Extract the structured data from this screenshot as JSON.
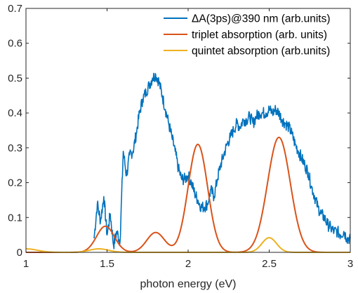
{
  "chart_data": {
    "type": "line",
    "title": "",
    "xlabel": "photon energy (eV)",
    "ylabel": "",
    "xlim": [
      1,
      3
    ],
    "ylim": [
      0,
      0.7
    ],
    "x_ticks": [
      1,
      1.5,
      2,
      2.5,
      3
    ],
    "x_tick_labels": [
      "1",
      "1.5",
      "2",
      "2.5",
      "3"
    ],
    "y_ticks": [
      0,
      0.1,
      0.2,
      0.3,
      0.4,
      0.5,
      0.6,
      0.7
    ],
    "y_tick_labels": [
      "0",
      "0.1",
      "0.2",
      "0.3",
      "0.4",
      "0.5",
      "0.6",
      "0.7"
    ],
    "grid": false,
    "legend_position": "top-right",
    "series": [
      {
        "name": "ΔA(3ps)@390 nm (arb.units)",
        "color": "#0072BD",
        "x": [
          1.42,
          1.44,
          1.46,
          1.48,
          1.5,
          1.52,
          1.54,
          1.56,
          1.58,
          1.6,
          1.62,
          1.64,
          1.66,
          1.68,
          1.7,
          1.72,
          1.74,
          1.76,
          1.78,
          1.8,
          1.82,
          1.84,
          1.86,
          1.88,
          1.9,
          1.92,
          1.94,
          1.96,
          1.98,
          2.0,
          2.02,
          2.04,
          2.06,
          2.08,
          2.1,
          2.12,
          2.14,
          2.16,
          2.18,
          2.2,
          2.22,
          2.24,
          2.26,
          2.28,
          2.3,
          2.32,
          2.34,
          2.36,
          2.38,
          2.4,
          2.42,
          2.44,
          2.46,
          2.48,
          2.5,
          2.52,
          2.54,
          2.56,
          2.58,
          2.6,
          2.62,
          2.64,
          2.66,
          2.68,
          2.7,
          2.72,
          2.74,
          2.76,
          2.78,
          2.8,
          2.82,
          2.84,
          2.86,
          2.88,
          2.9,
          2.92,
          2.94,
          2.96,
          2.98,
          3.0
        ],
        "values": [
          0.04,
          0.14,
          0.09,
          0.16,
          0.05,
          0.11,
          0.02,
          0.06,
          0.03,
          0.29,
          0.22,
          0.28,
          0.29,
          0.34,
          0.4,
          0.44,
          0.46,
          0.48,
          0.5,
          0.51,
          0.49,
          0.45,
          0.41,
          0.37,
          0.33,
          0.29,
          0.24,
          0.21,
          0.21,
          0.22,
          0.2,
          0.17,
          0.15,
          0.13,
          0.13,
          0.14,
          0.18,
          0.16,
          0.21,
          0.25,
          0.28,
          0.31,
          0.33,
          0.35,
          0.37,
          0.36,
          0.38,
          0.38,
          0.39,
          0.37,
          0.39,
          0.4,
          0.4,
          0.4,
          0.41,
          0.4,
          0.41,
          0.4,
          0.38,
          0.37,
          0.36,
          0.34,
          0.31,
          0.29,
          0.27,
          0.25,
          0.23,
          0.19,
          0.16,
          0.13,
          0.11,
          0.1,
          0.08,
          0.07,
          0.06,
          0.06,
          0.05,
          0.06,
          0.04,
          0.04
        ]
      },
      {
        "name": "triplet absorption (arb. units)",
        "color": "#D95319",
        "peaks": [
          {
            "center": 1.49,
            "height": 0.075,
            "width": 0.055
          },
          {
            "center": 1.8,
            "height": 0.057,
            "width": 0.055
          },
          {
            "center": 2.06,
            "height": 0.31,
            "width": 0.06
          },
          {
            "center": 2.56,
            "height": 0.33,
            "width": 0.07
          }
        ]
      },
      {
        "name": "quintet absorption (arb.units)",
        "color": "#EDB120",
        "peaks": [
          {
            "center": 1.0,
            "height": 0.01,
            "width": 0.07
          },
          {
            "center": 1.45,
            "height": 0.01,
            "width": 0.06
          },
          {
            "center": 2.5,
            "height": 0.042,
            "width": 0.045
          }
        ]
      }
    ]
  }
}
